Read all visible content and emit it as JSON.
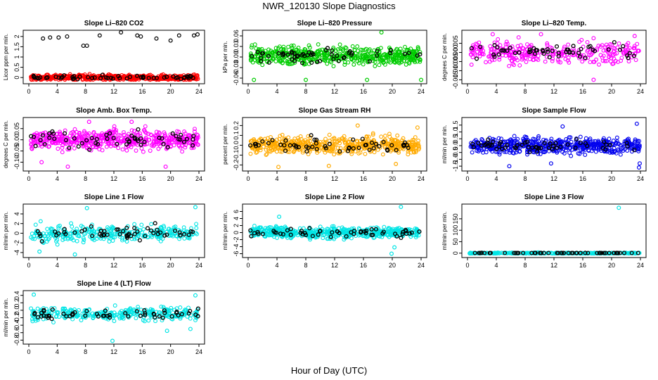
{
  "figure_title": "NWR_120130  Slope Diagnostics",
  "x_axis_label": "Hour of Day (UTC)",
  "chart_data": [
    {
      "type": "scatter",
      "title": "Slope Li–820 CO2",
      "ylabel": "Licor ppm per min.",
      "color": "#ff0000",
      "xlim": [
        0,
        24
      ],
      "xticks": [
        "0",
        "4",
        "8",
        "12",
        "16",
        "20",
        "24"
      ],
      "ylim": [
        -0.2,
        2.2
      ],
      "yticks": [
        {
          "v": 0,
          "t": "0"
        },
        {
          "v": 0.5,
          "t": "0.5"
        },
        {
          "v": 1,
          "t": "1"
        },
        {
          "v": 1.5,
          "t": "1.5"
        },
        {
          "v": 2,
          "t": "2"
        }
      ],
      "spread": 0.09,
      "center": 0.0,
      "dense": true,
      "outliers": [
        [
          2.0,
          1.9
        ],
        [
          3.0,
          1.95
        ],
        [
          4.2,
          1.95
        ],
        [
          5.4,
          2.0
        ],
        [
          7.7,
          1.55
        ],
        [
          8.2,
          1.55
        ],
        [
          10,
          2.05
        ],
        [
          13,
          2.2
        ],
        [
          15.3,
          2.05
        ],
        [
          15.8,
          2.0
        ],
        [
          18,
          1.9
        ],
        [
          20,
          1.8
        ],
        [
          21.2,
          2.05
        ],
        [
          23.3,
          2.05
        ],
        [
          23.8,
          2.1
        ]
      ]
    },
    {
      "type": "scatter",
      "title": "Slope Li–820 Pressure",
      "ylabel": "kPa per min.",
      "color": "#00cc00",
      "xlim": [
        0,
        24
      ],
      "xticks": [
        "0",
        "4",
        "8",
        "12",
        "16",
        "20",
        "24"
      ],
      "ylim": [
        -0.07,
        0.07
      ],
      "yticks": [
        {
          "v": -0.06,
          "t": "-0.06"
        },
        {
          "v": -0.03,
          "t": "-0.03"
        },
        {
          "v": 0,
          "t": "0.00"
        },
        {
          "v": 0.03,
          "t": "0.03"
        },
        {
          "v": 0.06,
          "t": "0.06"
        }
      ],
      "spread": 0.018,
      "center": 0.004,
      "dense": true,
      "outliers": [
        [
          0.8,
          -0.065
        ],
        [
          8.0,
          -0.065
        ],
        [
          16.5,
          -0.065
        ],
        [
          18.5,
          0.07
        ],
        [
          24,
          -0.065
        ]
      ]
    },
    {
      "type": "scatter",
      "title": "Slope Li–820 Temp.",
      "ylabel": "degrees C per min.",
      "color": "#ff00ff",
      "xlim": [
        0,
        24
      ],
      "xticks": [
        "0",
        "4",
        "8",
        "12",
        "16",
        "20",
        "24"
      ],
      "ylim": [
        -0.016,
        0.011
      ],
      "yticks": [
        {
          "v": -0.015,
          "t": "-0.015"
        },
        {
          "v": -0.01,
          "t": "-0.010"
        },
        {
          "v": -0.005,
          "t": "-0.005"
        },
        {
          "v": 0,
          "t": "0.000"
        },
        {
          "v": 0.005,
          "t": "0.005"
        }
      ],
      "spread": 0.004,
      "center": 0.0,
      "dense": false,
      "outliers": [
        [
          3.5,
          0.01
        ],
        [
          10.2,
          0.01
        ],
        [
          17.5,
          -0.015
        ],
        [
          23.2,
          0.009
        ]
      ]
    },
    {
      "type": "scatter",
      "title": "Slope Amb. Box Temp.",
      "ylabel": "degrees C per min.",
      "color": "#ff00ff",
      "xlim": [
        0,
        24
      ],
      "xticks": [
        "0",
        "4",
        "8",
        "12",
        "16",
        "20",
        "24"
      ],
      "ylim": [
        -0.13,
        0.09
      ],
      "yticks": [
        {
          "v": -0.1,
          "t": "-0.10"
        },
        {
          "v": -0.05,
          "t": "-0.05"
        },
        {
          "v": 0,
          "t": "0.00"
        },
        {
          "v": 0.05,
          "t": "0.05"
        }
      ],
      "spread": 0.03,
      "center": 0.0,
      "dense": true,
      "outliers": [
        [
          1.8,
          -0.1
        ],
        [
          5.5,
          -0.12
        ],
        [
          19.3,
          -0.12
        ],
        [
          14.5,
          0.08
        ],
        [
          8.5,
          0.08
        ]
      ]
    },
    {
      "type": "scatter",
      "title": "Slope Gas Stream RH",
      "ylabel": "percent per min.",
      "color": "#ffaa00",
      "xlim": [
        0,
        24
      ],
      "xticks": [
        "0",
        "4",
        "8",
        "12",
        "16",
        "20",
        "24"
      ],
      "ylim": [
        -0.24,
        0.26
      ],
      "yticks": [
        {
          "v": -0.2,
          "t": "-0.2"
        },
        {
          "v": -0.1,
          "t": "-0.1"
        },
        {
          "v": 0,
          "t": "0.0"
        },
        {
          "v": 0.1,
          "t": "0.1"
        },
        {
          "v": 0.2,
          "t": "0.2"
        }
      ],
      "spread": 0.06,
      "center": 0.0,
      "dense": true,
      "outliers": [
        [
          4.2,
          -0.22
        ],
        [
          11.2,
          -0.21
        ],
        [
          20.5,
          -0.19
        ],
        [
          15.2,
          0.2
        ],
        [
          23.5,
          0.18
        ]
      ]
    },
    {
      "type": "scatter",
      "title": "Slope Sample Flow",
      "ylabel": "ml/min per min.",
      "color": "#0000ee",
      "xlim": [
        0,
        24
      ],
      "xticks": [
        "0",
        "4",
        "8",
        "12",
        "16",
        "20",
        "24"
      ],
      "ylim": [
        -1.7,
        1.9
      ],
      "yticks": [
        {
          "v": -1.5,
          "t": "-1.5"
        },
        {
          "v": -1,
          "t": "-1.0"
        },
        {
          "v": -0.5,
          "t": "-0.5"
        },
        {
          "v": 0,
          "t": "0.0"
        },
        {
          "v": 0.5,
          "t": "0.5"
        },
        {
          "v": 1,
          "t": "1.0"
        },
        {
          "v": 1.5,
          "t": "1.5"
        }
      ],
      "spread": 0.4,
      "center": 0.0,
      "dense": true,
      "outliers": [
        [
          5.8,
          -1.5
        ],
        [
          11.6,
          -1.3
        ],
        [
          13.2,
          1.4
        ],
        [
          23.5,
          1.6
        ],
        [
          23.8,
          -1.6
        ],
        [
          23.9,
          -1.3
        ]
      ]
    },
    {
      "type": "scatter",
      "title": "Slope Line 1 Flow",
      "ylabel": "ml/min per min.",
      "color": "#00e5e5",
      "xlim": [
        0,
        24
      ],
      "xticks": [
        "0",
        "4",
        "8",
        "12",
        "16",
        "20",
        "24"
      ],
      "ylim": [
        -4.6,
        5.6
      ],
      "yticks": [
        {
          "v": -4,
          "t": "-4"
        },
        {
          "v": -2,
          "t": "-2"
        },
        {
          "v": 0,
          "t": "0"
        },
        {
          "v": 2,
          "t": "2"
        },
        {
          "v": 4,
          "t": "4"
        }
      ],
      "spread": 1.2,
      "center": 0.0,
      "dense": false,
      "outliers": [
        [
          8.2,
          5.2
        ],
        [
          6.5,
          -4.4
        ],
        [
          23.5,
          5.4
        ],
        [
          1.5,
          -3.8
        ]
      ]
    },
    {
      "type": "scatter",
      "title": "Slope Line 2 Flow",
      "ylabel": "ml/min per min.",
      "color": "#00e5e5",
      "xlim": [
        0,
        24
      ],
      "xticks": [
        "0",
        "4",
        "8",
        "12",
        "16",
        "20",
        "24"
      ],
      "ylim": [
        -6.5,
        7.5
      ],
      "yticks": [
        {
          "v": -6,
          "t": "-6"
        },
        {
          "v": -4,
          "t": "-4"
        },
        {
          "v": -2,
          "t": "-2"
        },
        {
          "v": 0,
          "t": "0"
        },
        {
          "v": 2,
          "t": "2"
        },
        {
          "v": 4,
          "t": "4"
        },
        {
          "v": 6,
          "t": "6"
        }
      ],
      "spread": 1.1,
      "center": 0.0,
      "dense": true,
      "outliers": [
        [
          4.3,
          4.5
        ],
        [
          19.9,
          -6.0
        ],
        [
          20.3,
          -4.2
        ],
        [
          21.2,
          7.3
        ]
      ]
    },
    {
      "type": "scatter",
      "title": "Slope Line 3 Flow",
      "ylabel": "ml/min per min.",
      "color": "#00e5e5",
      "xlim": [
        0,
        24
      ],
      "xticks": [
        "0",
        "4",
        "8",
        "12",
        "16",
        "20",
        "24"
      ],
      "ylim": [
        -10,
        205
      ],
      "yticks": [
        {
          "v": 0,
          "t": "0"
        },
        {
          "v": 50,
          "t": "50"
        },
        {
          "v": 100,
          "t": "100"
        },
        {
          "v": 150,
          "t": "150"
        }
      ],
      "spread": 1.5,
      "center": 0.0,
      "dense": false,
      "outliers": [
        [
          21.0,
          198
        ]
      ]
    },
    {
      "type": "scatter",
      "title": "Slope Line 4 (LT) Flow",
      "ylabel": "ml/min per min.",
      "color": "#00e5e5",
      "xlim": [
        0,
        24
      ],
      "xticks": [
        "0",
        "4",
        "8",
        "12",
        "16",
        "20",
        "24"
      ],
      "ylim": [
        -0.85,
        0.47
      ],
      "yticks": [
        {
          "v": -0.8,
          "t": "-0.8"
        },
        {
          "v": -0.6,
          "t": "-0.6"
        },
        {
          "v": -0.4,
          "t": "-0.4"
        },
        {
          "v": -0.2,
          "t": "-0.2"
        },
        {
          "v": 0,
          "t": "0.0"
        },
        {
          "v": 0.2,
          "t": "0.2"
        },
        {
          "v": 0.4,
          "t": "0.4"
        }
      ],
      "spread": 0.12,
      "center": -0.1,
      "dense": false,
      "outliers": [
        [
          0.7,
          0.42
        ],
        [
          11.8,
          -0.82
        ],
        [
          19.5,
          -0.55
        ],
        [
          23.5,
          0.4
        ],
        [
          22.8,
          -0.5
        ]
      ]
    }
  ]
}
